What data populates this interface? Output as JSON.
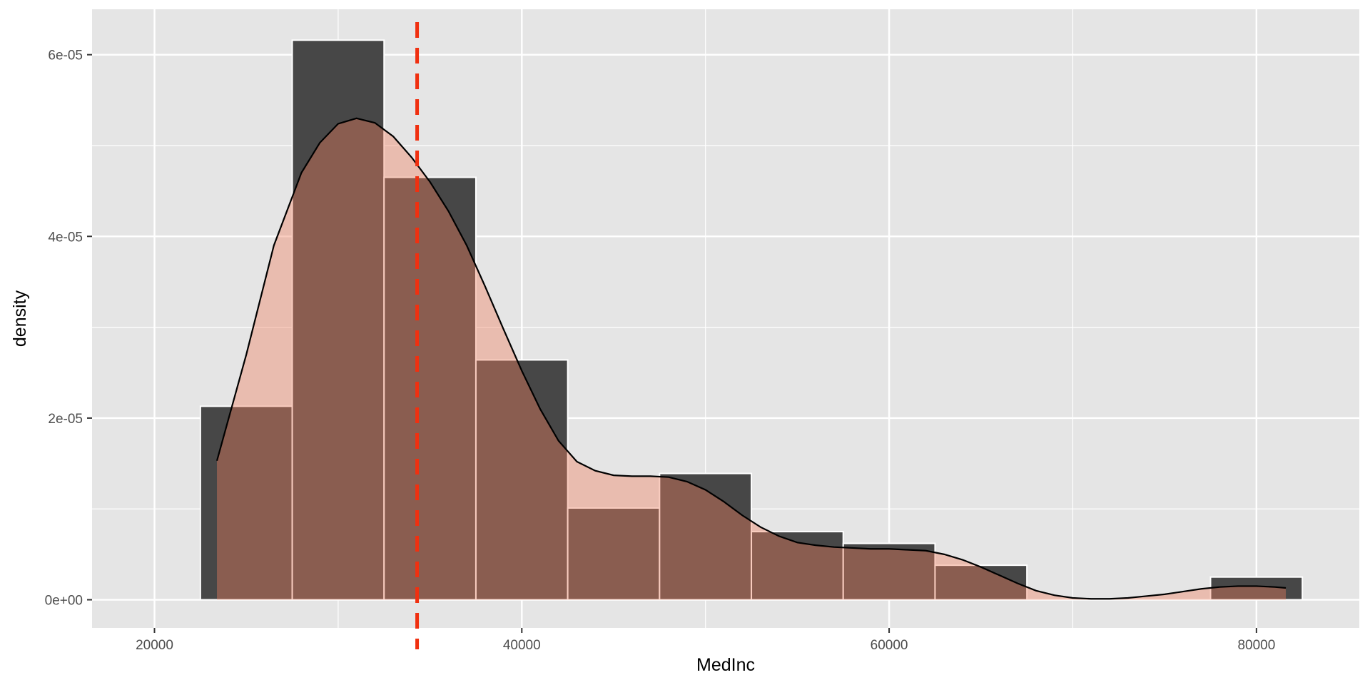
{
  "chart_data": {
    "type": "histogram",
    "title": "",
    "xlabel": "MedInc",
    "ylabel": "density",
    "xlim": [
      16600,
      85600
    ],
    "ylim": [
      -3.1e-06,
      6.5e-05
    ],
    "x_ticks": [
      {
        "value": 20000,
        "label": "20000"
      },
      {
        "value": 40000,
        "label": "40000"
      },
      {
        "value": 60000,
        "label": "60000"
      },
      {
        "value": 80000,
        "label": "80000"
      }
    ],
    "y_ticks": [
      {
        "value": 0,
        "label": "0e+00"
      },
      {
        "value": 2e-05,
        "label": "2e-05"
      },
      {
        "value": 4e-05,
        "label": "4e-05"
      },
      {
        "value": 6e-05,
        "label": "6e-05"
      }
    ],
    "grid": true,
    "bin_width": 5000,
    "histogram": {
      "color": "#474747",
      "bins": [
        {
          "start": 22500,
          "end": 27500,
          "density": 2.13e-05
        },
        {
          "start": 27500,
          "end": 32500,
          "density": 6.16e-05
        },
        {
          "start": 32500,
          "end": 37500,
          "density": 4.65e-05
        },
        {
          "start": 37500,
          "end": 42500,
          "density": 2.64e-05
        },
        {
          "start": 42500,
          "end": 47500,
          "density": 1.01e-05
        },
        {
          "start": 47500,
          "end": 52500,
          "density": 1.39e-05
        },
        {
          "start": 52500,
          "end": 57500,
          "density": 7.5e-06
        },
        {
          "start": 57500,
          "end": 62500,
          "density": 6.2e-06
        },
        {
          "start": 62500,
          "end": 67500,
          "density": 3.8e-06
        },
        {
          "start": 67500,
          "end": 72500,
          "density": 0
        },
        {
          "start": 72500,
          "end": 77500,
          "density": 0
        },
        {
          "start": 77500,
          "end": 82500,
          "density": 2.5e-06
        }
      ]
    },
    "density_curve": {
      "fill": "#f08060",
      "fill_opacity": 0.4,
      "line_color": "#000000",
      "x": [
        23400,
        25000,
        26500,
        28000,
        29000,
        30000,
        31000,
        32000,
        33000,
        34000,
        35000,
        36000,
        37000,
        38000,
        39000,
        40000,
        41000,
        42000,
        43000,
        44000,
        45000,
        46000,
        47000,
        48000,
        49000,
        50000,
        51000,
        52000,
        53000,
        54000,
        55000,
        56000,
        57000,
        58000,
        59000,
        60000,
        61000,
        62000,
        63000,
        64000,
        65000,
        66000,
        67000,
        68000,
        69000,
        70000,
        71000,
        72000,
        73000,
        74000,
        75000,
        76000,
        77000,
        78000,
        79000,
        80000,
        81000,
        81600
      ],
      "y": [
        1.53e-05,
        2.7e-05,
        3.9e-05,
        4.7e-05,
        5.03e-05,
        5.24e-05,
        5.3e-05,
        5.25e-05,
        5.1e-05,
        4.87e-05,
        4.6e-05,
        4.28e-05,
        3.9e-05,
        3.45e-05,
        2.98e-05,
        2.52e-05,
        2.1e-05,
        1.75e-05,
        1.52e-05,
        1.42e-05,
        1.37e-05,
        1.36e-05,
        1.36e-05,
        1.35e-05,
        1.3e-05,
        1.21e-05,
        1.08e-05,
        9.3e-06,
        8e-06,
        7e-06,
        6.3e-06,
        6e-06,
        5.8e-06,
        5.7e-06,
        5.6e-06,
        5.6e-06,
        5.5e-06,
        5.4e-06,
        5e-06,
        4.4e-06,
        3.6e-06,
        2.7e-06,
        1.8e-06,
        1e-06,
        5e-07,
        2e-07,
        1e-07,
        1e-07,
        2e-07,
        4e-07,
        6e-07,
        9e-07,
        1.2e-06,
        1.4e-06,
        1.5e-06,
        1.5e-06,
        1.4e-06,
        1.3e-06
      ]
    },
    "vline": {
      "x": 34300,
      "color": "#f03010",
      "style": "dashed"
    }
  }
}
